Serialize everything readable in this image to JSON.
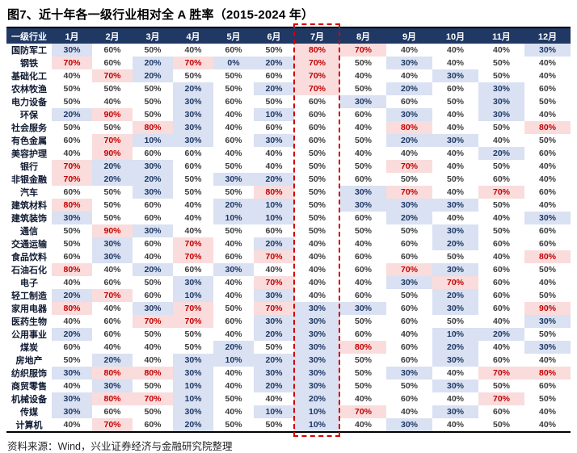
{
  "title": "图7、近十年各一级行业相对全 A 胜率（2015-2024 年）",
  "source": "资料来源：Wind，兴业证券经济与金融研究院整理",
  "colors": {
    "header_bg": "#1f3864",
    "high_bg": "#fadcdc",
    "high_text": "#c00000",
    "low_bg": "#d9e1f2",
    "low_text": "#1f3864",
    "mid_text": "#3c3c3c",
    "highlight_border": "#d40000"
  },
  "format_rules": {
    "high_min": 70,
    "low_max": 30,
    "unit": "%"
  },
  "chart_data": {
    "type": "heatmap",
    "title": "图7、近十年各一级行业相对全 A 胜率（2015-2024 年）",
    "row_header": "一级行业",
    "columns": [
      "1月",
      "2月",
      "3月",
      "4月",
      "5月",
      "6月",
      "7月",
      "8月",
      "9月",
      "10月",
      "11月",
      "12月"
    ],
    "highlight_column": "7月",
    "unit": "%",
    "value_range": [
      0,
      100
    ],
    "legend_rule": "win rate >=70% shaded pink with red text, <=30% shaded light blue with navy text",
    "rows": [
      {
        "industry": "国防军工",
        "values": [
          30,
          60,
          50,
          40,
          60,
          50,
          80,
          70,
          40,
          40,
          40,
          30
        ]
      },
      {
        "industry": "钢铁",
        "values": [
          70,
          60,
          20,
          70,
          0,
          20,
          70,
          50,
          30,
          40,
          50,
          40
        ]
      },
      {
        "industry": "基础化工",
        "values": [
          40,
          70,
          20,
          50,
          50,
          60,
          70,
          40,
          40,
          30,
          50,
          40
        ]
      },
      {
        "industry": "农林牧渔",
        "values": [
          50,
          50,
          50,
          20,
          50,
          20,
          70,
          50,
          20,
          60,
          30,
          60
        ]
      },
      {
        "industry": "电力设备",
        "values": [
          50,
          40,
          50,
          30,
          60,
          50,
          60,
          30,
          60,
          50,
          30,
          50
        ]
      },
      {
        "industry": "环保",
        "values": [
          20,
          90,
          50,
          30,
          40,
          10,
          60,
          60,
          30,
          40,
          30,
          40
        ]
      },
      {
        "industry": "社会服务",
        "values": [
          50,
          50,
          80,
          30,
          40,
          60,
          60,
          40,
          80,
          40,
          50,
          80
        ]
      },
      {
        "industry": "有色金属",
        "values": [
          60,
          70,
          10,
          30,
          60,
          30,
          60,
          50,
          20,
          30,
          40,
          50
        ]
      },
      {
        "industry": "美容护理",
        "values": [
          40,
          90,
          60,
          60,
          40,
          40,
          50,
          40,
          40,
          40,
          20,
          60
        ]
      },
      {
        "industry": "银行",
        "values": [
          70,
          20,
          30,
          60,
          50,
          40,
          50,
          50,
          70,
          40,
          50,
          40
        ]
      },
      {
        "industry": "非银金融",
        "values": [
          70,
          20,
          20,
          50,
          30,
          20,
          50,
          60,
          50,
          50,
          60,
          40
        ]
      },
      {
        "industry": "汽车",
        "values": [
          60,
          50,
          30,
          50,
          50,
          80,
          50,
          30,
          70,
          40,
          70,
          60
        ]
      },
      {
        "industry": "建筑材料",
        "values": [
          80,
          50,
          60,
          40,
          20,
          10,
          50,
          30,
          30,
          30,
          50,
          40
        ]
      },
      {
        "industry": "建筑装饰",
        "values": [
          30,
          50,
          60,
          40,
          10,
          10,
          50,
          60,
          20,
          40,
          40,
          30
        ]
      },
      {
        "industry": "通信",
        "values": [
          50,
          90,
          30,
          40,
          50,
          60,
          50,
          50,
          50,
          30,
          50,
          60
        ]
      },
      {
        "industry": "交通运输",
        "values": [
          50,
          30,
          60,
          70,
          40,
          20,
          40,
          40,
          60,
          20,
          60,
          60
        ]
      },
      {
        "industry": "食品饮料",
        "values": [
          60,
          30,
          40,
          70,
          60,
          70,
          40,
          60,
          60,
          50,
          40,
          80
        ]
      },
      {
        "industry": "石油石化",
        "values": [
          80,
          40,
          20,
          60,
          30,
          40,
          40,
          60,
          70,
          30,
          60,
          50
        ]
      },
      {
        "industry": "电子",
        "values": [
          40,
          60,
          50,
          30,
          40,
          70,
          40,
          40,
          30,
          70,
          60,
          40
        ]
      },
      {
        "industry": "轻工制造",
        "values": [
          20,
          70,
          60,
          10,
          40,
          30,
          40,
          60,
          50,
          20,
          60,
          50
        ]
      },
      {
        "industry": "家用电器",
        "values": [
          80,
          40,
          30,
          70,
          50,
          70,
          30,
          30,
          60,
          30,
          60,
          90
        ]
      },
      {
        "industry": "医药生物",
        "values": [
          40,
          60,
          70,
          70,
          60,
          30,
          30,
          50,
          60,
          50,
          40,
          30
        ]
      },
      {
        "industry": "公用事业",
        "values": [
          20,
          60,
          50,
          50,
          40,
          20,
          30,
          60,
          40,
          10,
          20,
          50
        ]
      },
      {
        "industry": "煤炭",
        "values": [
          60,
          40,
          40,
          50,
          20,
          50,
          30,
          80,
          60,
          20,
          40,
          30
        ]
      },
      {
        "industry": "房地产",
        "values": [
          50,
          20,
          40,
          30,
          10,
          20,
          30,
          50,
          60,
          30,
          60,
          40
        ]
      },
      {
        "industry": "纺织服饰",
        "values": [
          30,
          80,
          80,
          30,
          40,
          30,
          30,
          50,
          30,
          40,
          70,
          80
        ]
      },
      {
        "industry": "商贸零售",
        "values": [
          40,
          30,
          50,
          10,
          40,
          20,
          30,
          50,
          50,
          30,
          50,
          60
        ]
      },
      {
        "industry": "机械设备",
        "values": [
          30,
          80,
          70,
          10,
          50,
          40,
          20,
          40,
          60,
          40,
          70,
          50
        ]
      },
      {
        "industry": "传媒",
        "values": [
          30,
          60,
          50,
          30,
          40,
          10,
          10,
          70,
          40,
          30,
          60,
          40
        ]
      },
      {
        "industry": "计算机",
        "values": [
          40,
          70,
          60,
          20,
          50,
          50,
          10,
          40,
          30,
          40,
          50,
          40
        ]
      }
    ]
  }
}
